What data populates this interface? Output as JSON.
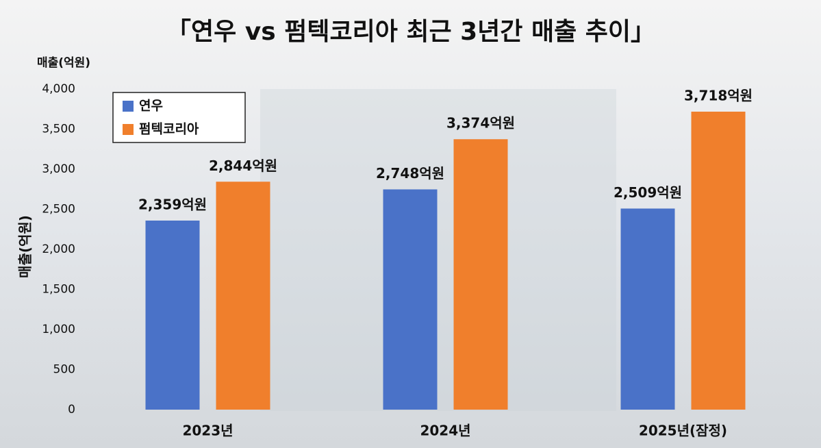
{
  "chart_data": {
    "type": "bar",
    "title": "「연우 vs 펌텍코리아 최근 3년간 매출 추이」",
    "unit_label": "매출(억원)",
    "ylabel": "매출(억원)",
    "categories": [
      "2023년",
      "2024년",
      "2025년(잠정)"
    ],
    "series": [
      {
        "name": "연우",
        "color": "#4a72c8",
        "values": [
          2359,
          2748,
          2509
        ],
        "value_labels": [
          "2,359억원",
          "2,748억원",
          "2,509억원"
        ]
      },
      {
        "name": "펌텍코리아",
        "color": "#f07f2c",
        "values": [
          2844,
          3374,
          3718
        ],
        "value_labels": [
          "2,844억원",
          "3,374억원",
          "3,718억원"
        ]
      }
    ],
    "ylim": [
      0,
      4000
    ],
    "yticks": [
      0,
      500,
      {
        "value": 1000,
        "label": "1,000"
      },
      {
        "value": 1500,
        "label": "1,500"
      },
      {
        "value": 2000,
        "label": "2,000"
      },
      {
        "value": 2500,
        "label": "2,500"
      },
      {
        "value": 3000,
        "label": "3,000"
      },
      {
        "value": 3500,
        "label": "3,500"
      },
      {
        "value": 4000,
        "label": "4,000"
      }
    ],
    "grid": false,
    "legend": "upper left"
  }
}
